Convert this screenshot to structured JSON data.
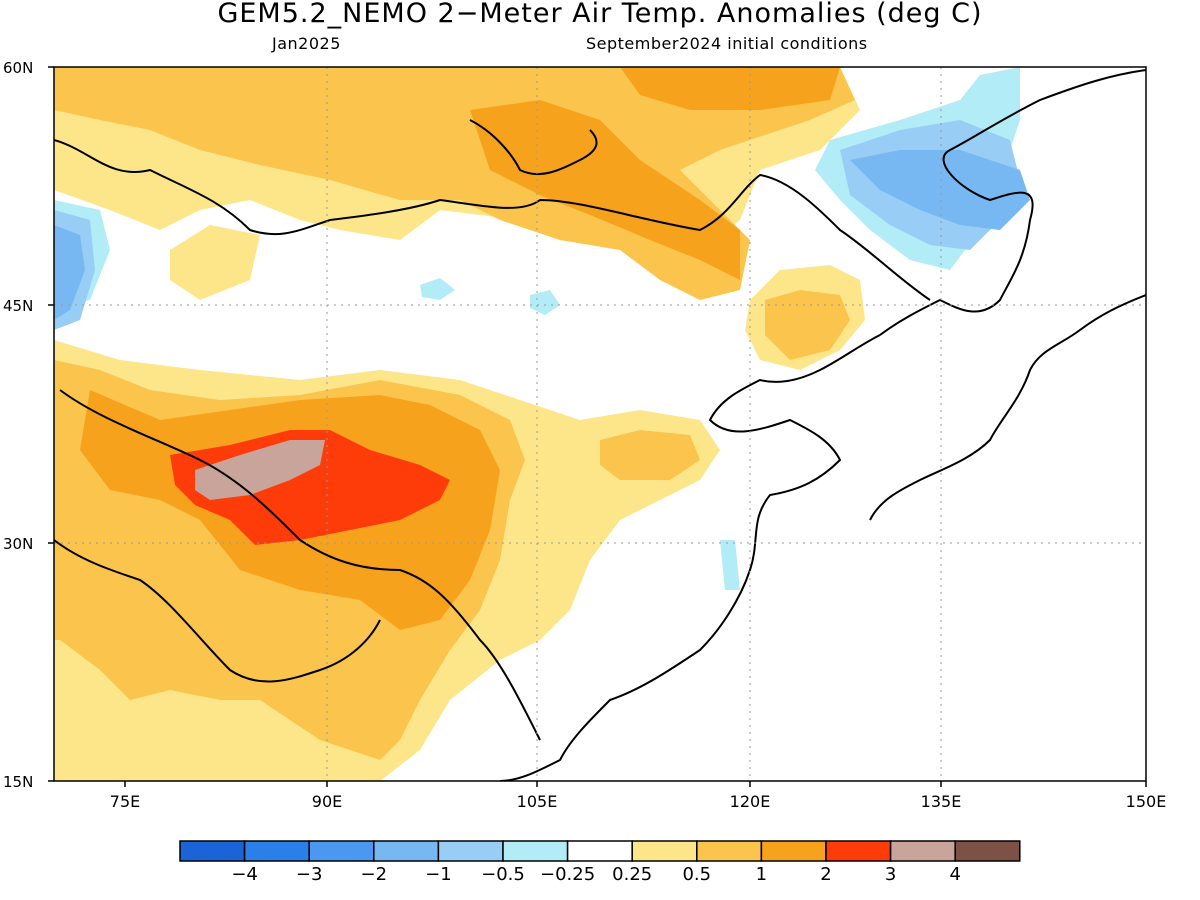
{
  "header": {
    "title": "GEM5.2_NEMO 2−Meter Air Temp. Anomalies (deg C)",
    "month": "Jan2025",
    "init": "September2024 initial conditions"
  },
  "axes": {
    "lat_labels": [
      "60N",
      "45N",
      "30N",
      "15N"
    ],
    "lon_labels": [
      "75E",
      "90E",
      "105E",
      "120E",
      "135E",
      "150E"
    ]
  },
  "colorbar": {
    "colors": [
      "#1a64d8",
      "#2a7fe8",
      "#4a98f0",
      "#78b8f2",
      "#98cdf5",
      "#b2ecf7",
      "#ffffff",
      "#fde68a",
      "#fbc44d",
      "#f7a21c",
      "#fd3c09",
      "#c9a49a",
      "#7d5145"
    ],
    "labels": [
      "−4",
      "−3",
      "−2",
      "−1",
      "−0.5",
      "−0.25",
      "0.25",
      "0.5",
      "1",
      "2",
      "3",
      "4"
    ]
  },
  "map": {
    "region": "East Asia",
    "lat_range": [
      15,
      60
    ],
    "lon_range": [
      70,
      150
    ],
    "gridlines": "dotted"
  }
}
